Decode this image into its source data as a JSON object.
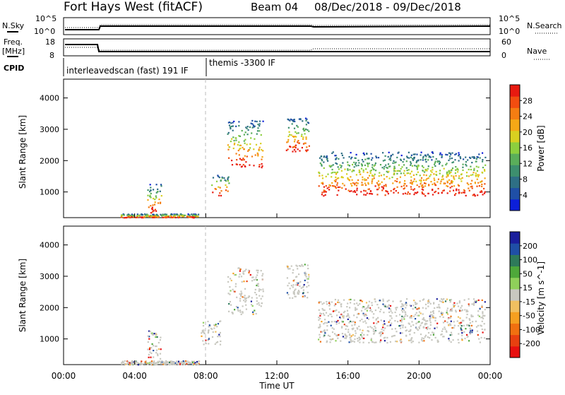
{
  "header": {
    "site": "Fort Hays West (fitACF)",
    "beam": "Beam 04",
    "date_range": "08/Dec/2018 - 09/Dec/2018"
  },
  "strip_labels": {
    "nsky": "N.Sky",
    "nsearch": "N.Search",
    "freq": "Freq.",
    "freq_unit": "[MHz]",
    "nave": "Nave",
    "cpid": "CPID",
    "nsky_top": "10^5",
    "nsky_bottom": "10^0",
    "nsearch_top": "10^5",
    "nsearch_bottom": "10^0",
    "freq_top": "18",
    "freq_bottom": "8",
    "nave_top": "60",
    "nave_bottom": "0"
  },
  "cpid_segments": [
    {
      "label": "interleavedscan (fast) 191 IF",
      "start_hour": 0,
      "end_hour": 8
    },
    {
      "label": "themis -3300 IF",
      "start_hour": 8,
      "end_hour": 24
    }
  ],
  "chart_data": [
    {
      "type": "heatmap",
      "name": "power",
      "ylabel": "Slant Range [km]",
      "xlabel": "Time UT",
      "x_ticks": [
        "00:00",
        "04:00",
        "08:00",
        "12:00",
        "16:00",
        "20:00",
        "00:00"
      ],
      "y_ticks": [
        1000,
        2000,
        3000,
        4000
      ],
      "xlim_hours": [
        0,
        24
      ],
      "ylim_km": [
        180,
        4600
      ],
      "colorbar_label": "Power [dB]",
      "colorbar_ticks": [
        4,
        8,
        12,
        16,
        20,
        24,
        28
      ],
      "colorbar_colors": [
        "#0c1fd9",
        "#1f4fa6",
        "#2e6f85",
        "#3d8f6e",
        "#5aae5a",
        "#8ccf3e",
        "#d8d020",
        "#f5a816",
        "#f57d12",
        "#f24d10",
        "#e81a10"
      ],
      "scatter_regions": [
        {
          "t_start": 3.2,
          "t_end": 7.6,
          "r_low": 200,
          "r_high": 320,
          "weight": 0.5
        },
        {
          "t_start": 4.7,
          "t_end": 5.5,
          "r_low": 350,
          "r_high": 1300,
          "weight": 0.6
        },
        {
          "t_start": 8.3,
          "t_end": 9.3,
          "r_low": 900,
          "r_high": 1600,
          "weight": 0.35
        },
        {
          "t_start": 9.2,
          "t_end": 11.2,
          "r_low": 1800,
          "r_high": 3300,
          "weight": 0.7
        },
        {
          "t_start": 12.5,
          "t_end": 13.8,
          "r_low": 2300,
          "r_high": 3400,
          "weight": 0.7
        },
        {
          "t_start": 14.3,
          "t_end": 23.7,
          "r_low": 900,
          "r_high": 2300,
          "weight": 0.85
        }
      ]
    },
    {
      "type": "heatmap",
      "name": "velocity",
      "ylabel": "Slant Range [km]",
      "xlabel": "Time UT",
      "x_ticks": [
        "00:00",
        "04:00",
        "08:00",
        "12:00",
        "16:00",
        "20:00",
        "00:00"
      ],
      "y_ticks": [
        1000,
        2000,
        3000,
        4000
      ],
      "xlim_hours": [
        0,
        24
      ],
      "ylim_km": [
        180,
        4600
      ],
      "colorbar_label": "Velocity [m s^-1]",
      "colorbar_ticks": [
        200,
        100,
        50,
        15,
        -15,
        -50,
        -100,
        -200
      ],
      "colorbar_colors": [
        "#1a1e9c",
        "#1f4fa6",
        "#2e7a5a",
        "#4ea83a",
        "#8fd05a",
        "#c8c8c0",
        "#f0c060",
        "#f5a020",
        "#f07010",
        "#e84010",
        "#e81010"
      ],
      "scatter_regions": [
        {
          "t_start": 3.2,
          "t_end": 7.6,
          "r_low": 200,
          "r_high": 320,
          "weight": 0.5
        },
        {
          "t_start": 4.7,
          "t_end": 5.5,
          "r_low": 350,
          "r_high": 1300,
          "weight": 0.6
        },
        {
          "t_start": 7.7,
          "t_end": 8.8,
          "r_low": 800,
          "r_high": 1600,
          "weight": 0.5
        },
        {
          "t_start": 9.2,
          "t_end": 11.2,
          "r_low": 1800,
          "r_high": 3300,
          "weight": 0.7
        },
        {
          "t_start": 12.5,
          "t_end": 13.8,
          "r_low": 2300,
          "r_high": 3400,
          "weight": 0.7
        },
        {
          "t_start": 14.3,
          "t_end": 23.7,
          "r_low": 900,
          "r_high": 2300,
          "weight": 0.85
        }
      ]
    }
  ]
}
